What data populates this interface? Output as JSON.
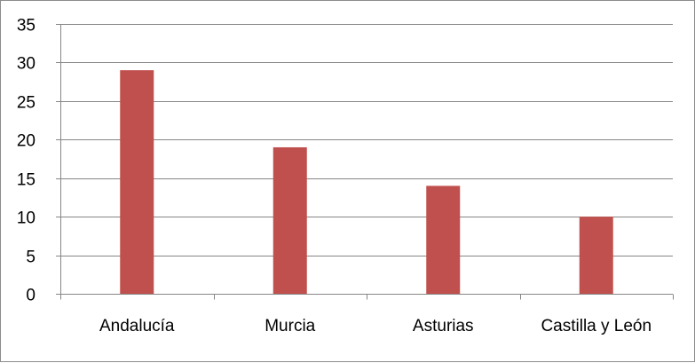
{
  "chart_data": {
    "type": "bar",
    "title": "",
    "xlabel": "",
    "ylabel": "",
    "categories": [
      "Andalucía",
      "Murcia",
      "Asturias",
      "Castilla y León"
    ],
    "values": [
      29,
      19,
      14,
      10
    ],
    "ylim": [
      0,
      35
    ],
    "yticks": [
      0,
      5,
      10,
      15,
      20,
      25,
      30,
      35
    ],
    "grid": true,
    "legend": "none",
    "bar_color": "#c0504d",
    "grid_color": "#868686"
  }
}
